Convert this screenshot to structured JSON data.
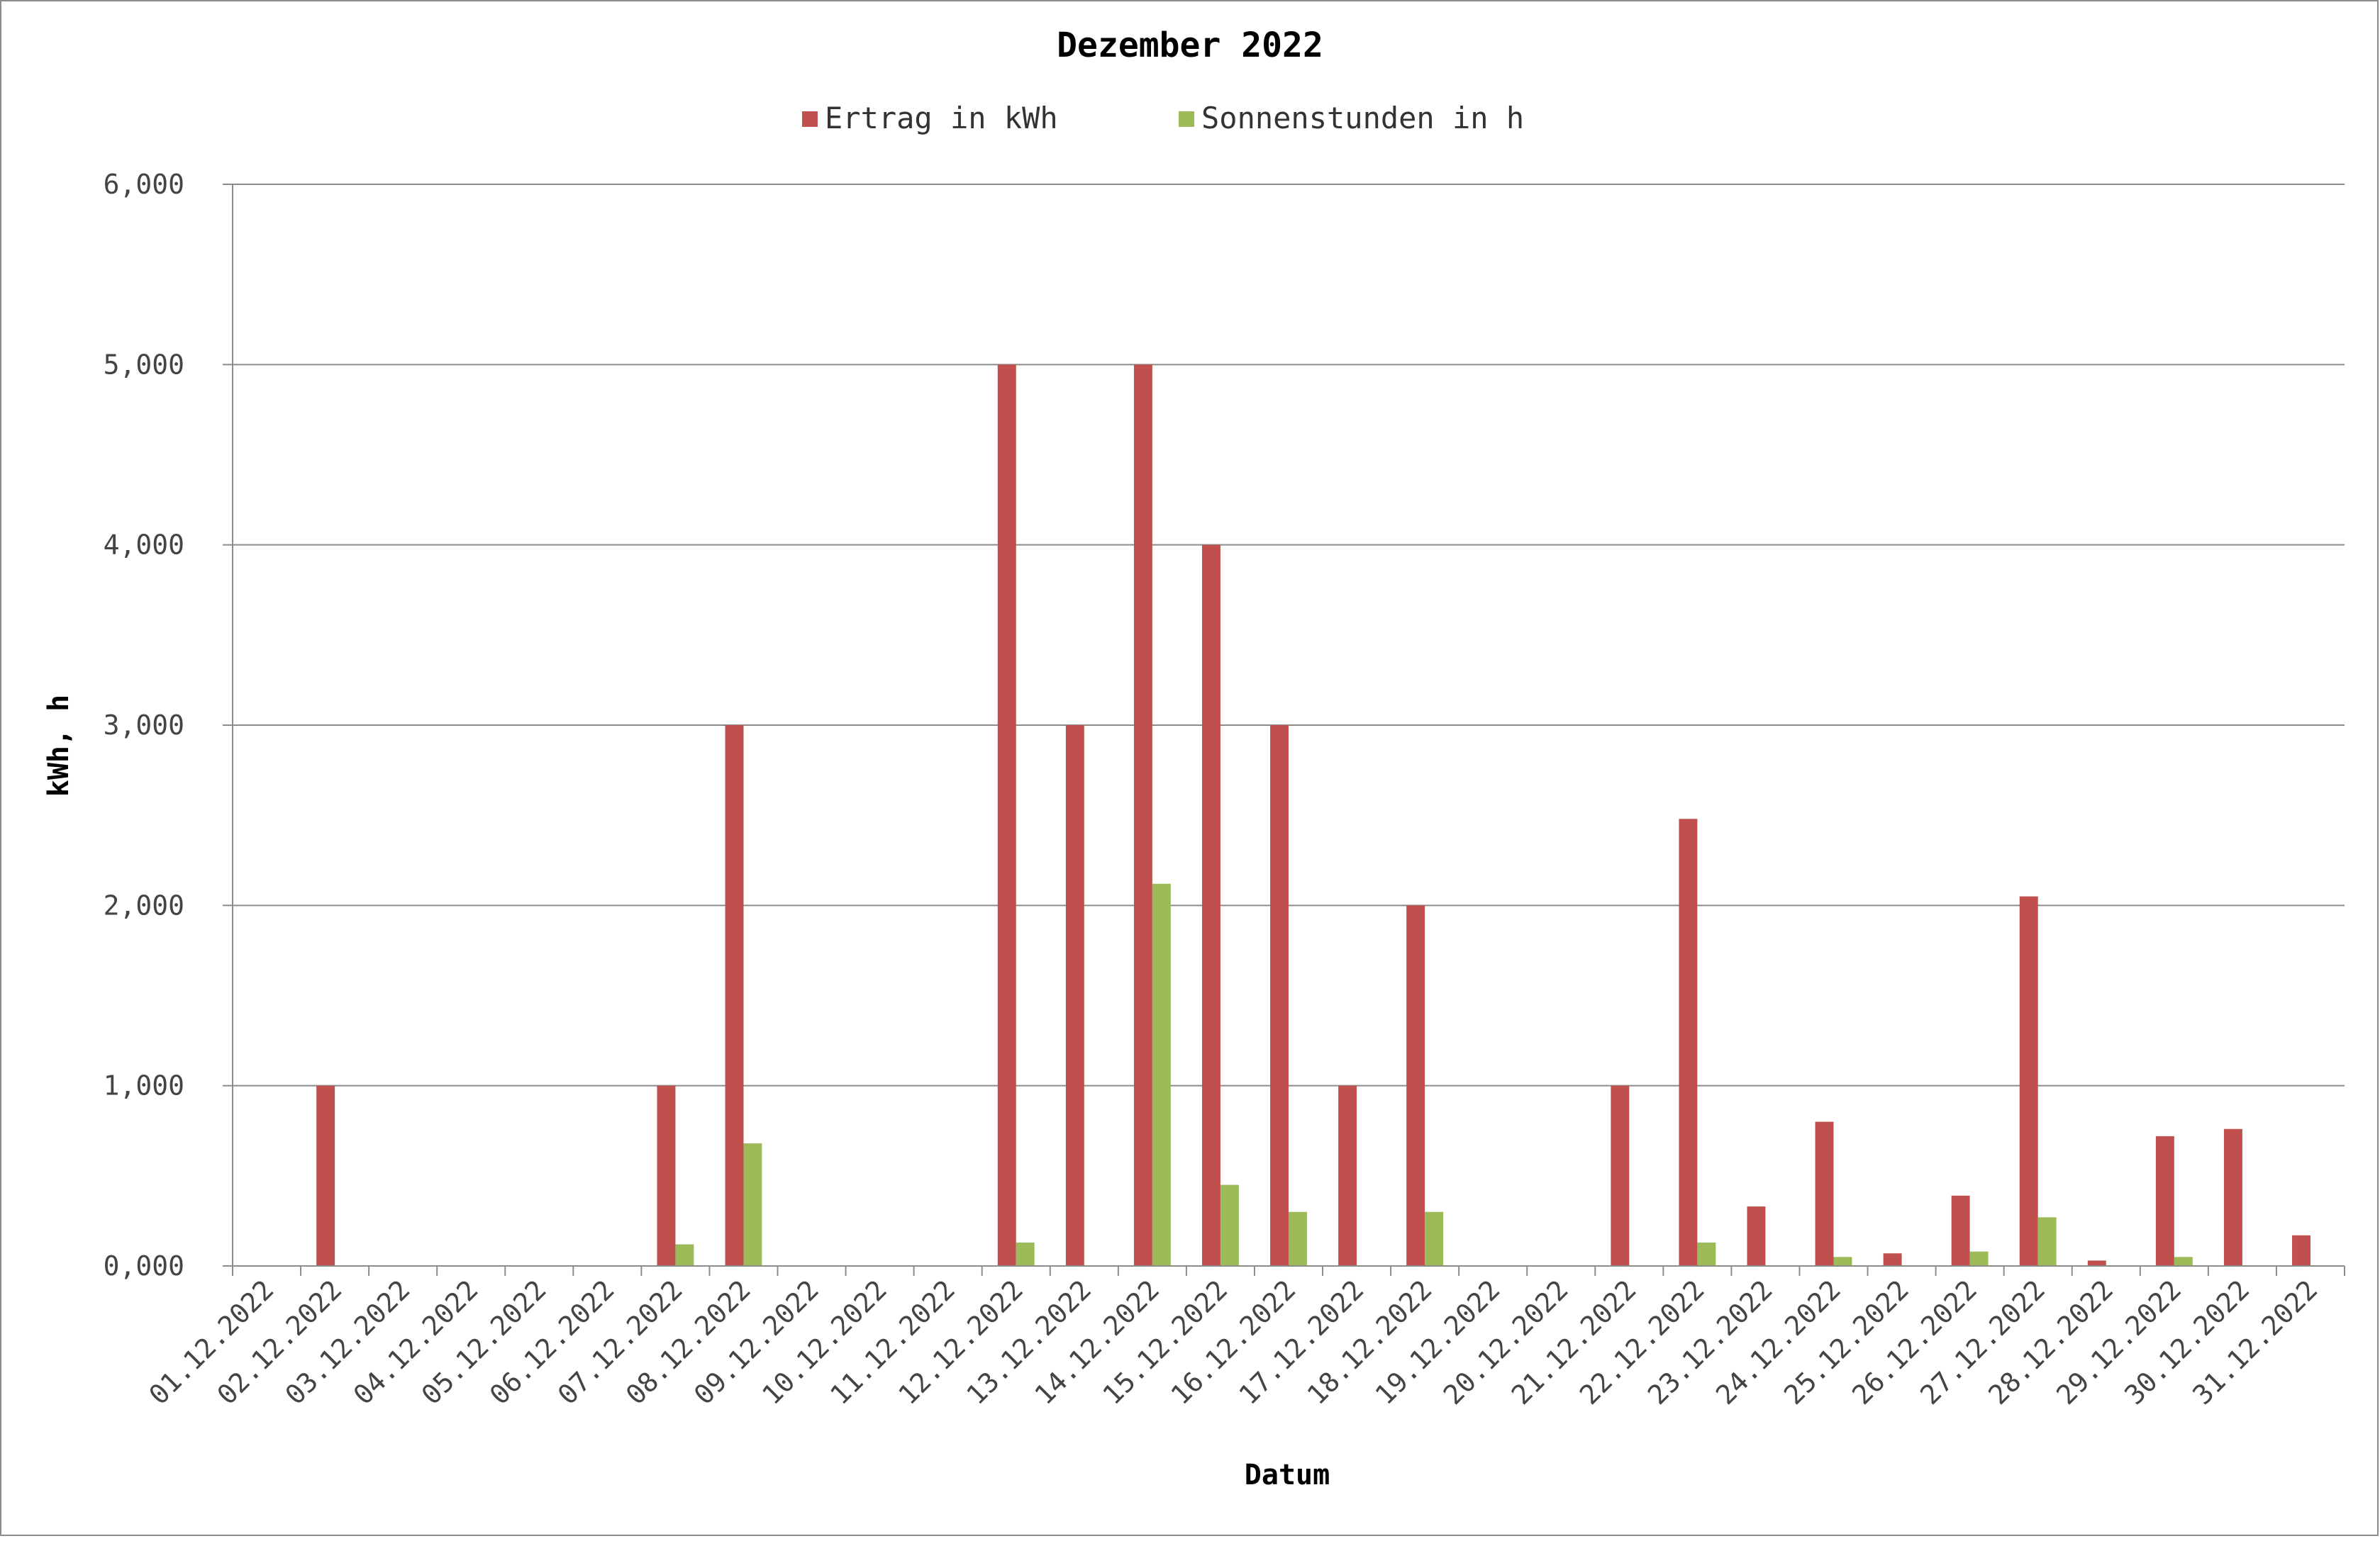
{
  "chart_data": {
    "type": "bar",
    "title": "Dezember 2022",
    "xlabel": "Datum",
    "ylabel": "kWh, h",
    "ylim": [
      0,
      6
    ],
    "y_ticks": [
      "0,000",
      "1,000",
      "2,000",
      "3,000",
      "4,000",
      "5,000",
      "6,000"
    ],
    "grid": true,
    "legend_position": "top",
    "categories": [
      "01.12.2022",
      "02.12.2022",
      "03.12.2022",
      "04.12.2022",
      "05.12.2022",
      "06.12.2022",
      "07.12.2022",
      "08.12.2022",
      "09.12.2022",
      "10.12.2022",
      "11.12.2022",
      "12.12.2022",
      "13.12.2022",
      "14.12.2022",
      "15.12.2022",
      "16.12.2022",
      "17.12.2022",
      "18.12.2022",
      "19.12.2022",
      "20.12.2022",
      "21.12.2022",
      "22.12.2022",
      "23.12.2022",
      "24.12.2022",
      "25.12.2022",
      "26.12.2022",
      "27.12.2022",
      "28.12.2022",
      "29.12.2022",
      "30.12.2022",
      "31.12.2022"
    ],
    "series": [
      {
        "name": "Ertrag in kWh",
        "color": "#c0504d",
        "values": [
          0,
          1,
          0,
          0,
          0,
          0,
          1,
          3,
          0,
          0,
          0,
          5,
          3,
          5,
          4,
          3,
          1,
          2,
          0,
          0,
          1,
          2.48,
          0.33,
          0.8,
          0.07,
          0.39,
          2.05,
          0.03,
          0.72,
          0.76,
          0.17
        ]
      },
      {
        "name": "Sonnenstunden in h",
        "color": "#9bbb59",
        "values": [
          0,
          0,
          0,
          0,
          0,
          0,
          0.12,
          0.68,
          0,
          0,
          0,
          0.13,
          0,
          2.12,
          0.45,
          0.3,
          0,
          0.3,
          0,
          0,
          0,
          0.13,
          0,
          0.05,
          0,
          0.08,
          0.27,
          0,
          0.05,
          0,
          0
        ]
      }
    ]
  }
}
